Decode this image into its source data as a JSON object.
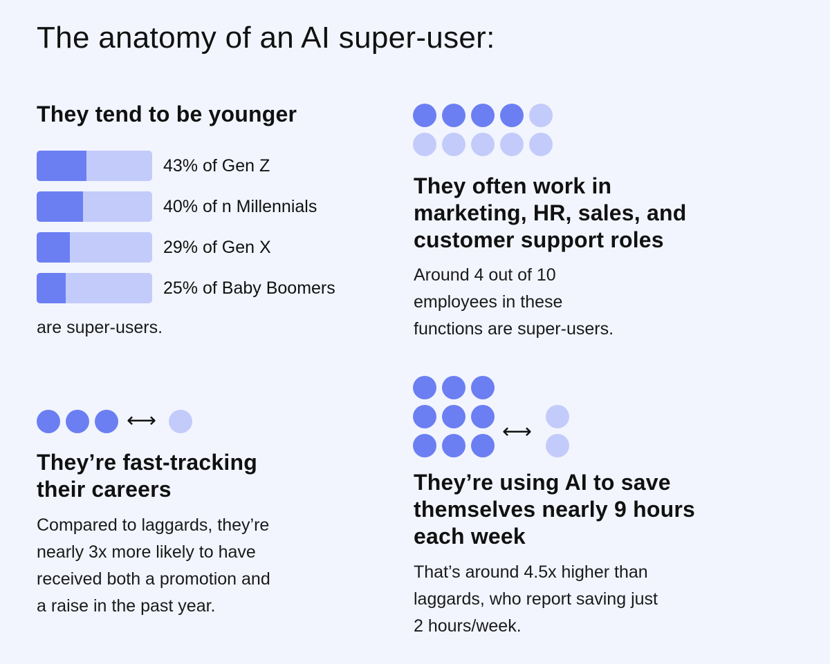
{
  "title": "The anatomy of an AI super-user:",
  "colors": {
    "accent": "#6b7ff2",
    "accent_light": "#c3cbfa",
    "background": "#f2f5fe"
  },
  "younger": {
    "heading": "They tend to be younger",
    "footer": "are super-users."
  },
  "chart_data": {
    "type": "bar",
    "title": "They tend to be younger",
    "categories": [
      "Gen Z",
      "Millennials",
      "Gen X",
      "Baby Boomers"
    ],
    "values": [
      43,
      40,
      29,
      25
    ],
    "labels": [
      "43% of Gen Z",
      "40% of n Millennials",
      "29% of Gen X",
      "25% of Baby Boomers"
    ],
    "ylim": [
      0,
      100
    ],
    "unit": "%"
  },
  "roles": {
    "heading": [
      "They often work in",
      "marketing, HR, sales, and",
      "customer support roles"
    ],
    "body": [
      "Around 4 out of 10",
      "employees in these",
      "functions are super-users."
    ],
    "dots_filled": 4,
    "dots_total": 10
  },
  "careers": {
    "heading": [
      "They’re fast-tracking",
      "their careers"
    ],
    "body": [
      "Compared to laggards, they’re",
      "nearly 3x more likely to have",
      "received both a promotion and",
      "a raise in the past year."
    ],
    "arrow": "⟷"
  },
  "hours": {
    "heading": [
      "They’re using AI to save",
      "themselves nearly 9 hours",
      "each week"
    ],
    "body": [
      "That’s around 4.5x higher than",
      "laggards, who report saving just",
      "2 hours/week."
    ],
    "super_user_hours": 9,
    "laggard_hours": 2,
    "arrow": "⟷"
  }
}
